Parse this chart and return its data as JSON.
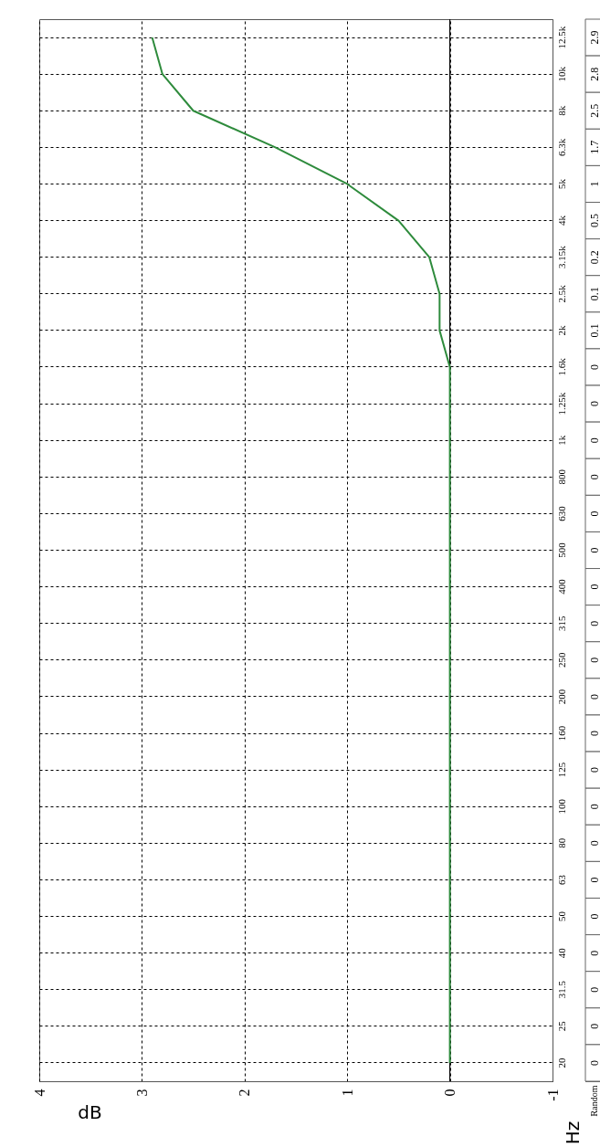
{
  "chart_data": {
    "type": "line",
    "orientation": "horizontal",
    "xlabel": "dB",
    "ylabel": "Hz",
    "categories": [
      "12.5k",
      "10k",
      "8k",
      "6.3k",
      "5k",
      "4k",
      "3.15k",
      "2.5k",
      "2k",
      "1.6k",
      "1.25k",
      "1k",
      "800",
      "630",
      "500",
      "400",
      "315",
      "250",
      "200",
      "160",
      "125",
      "100",
      "80",
      "63",
      "50",
      "40",
      "31.5",
      "25",
      "20"
    ],
    "series": [
      {
        "name": "Random",
        "color": "#2e8b3c",
        "values": [
          2.9,
          2.8,
          2.5,
          1.7,
          1,
          0.5,
          0.2,
          0.1,
          0.1,
          0,
          0,
          0,
          0,
          0,
          0,
          0,
          0,
          0,
          0,
          0,
          0,
          0,
          0,
          0,
          0,
          0,
          0,
          0,
          0
        ]
      }
    ],
    "xlim": [
      4,
      -1
    ],
    "xticks": [
      4,
      3,
      2,
      1,
      0,
      -1
    ],
    "grid": true,
    "line_style": "solid",
    "data_labels": true,
    "ref_lines": [
      {
        "axis": "x",
        "value": 0,
        "color": "#000000"
      }
    ]
  }
}
